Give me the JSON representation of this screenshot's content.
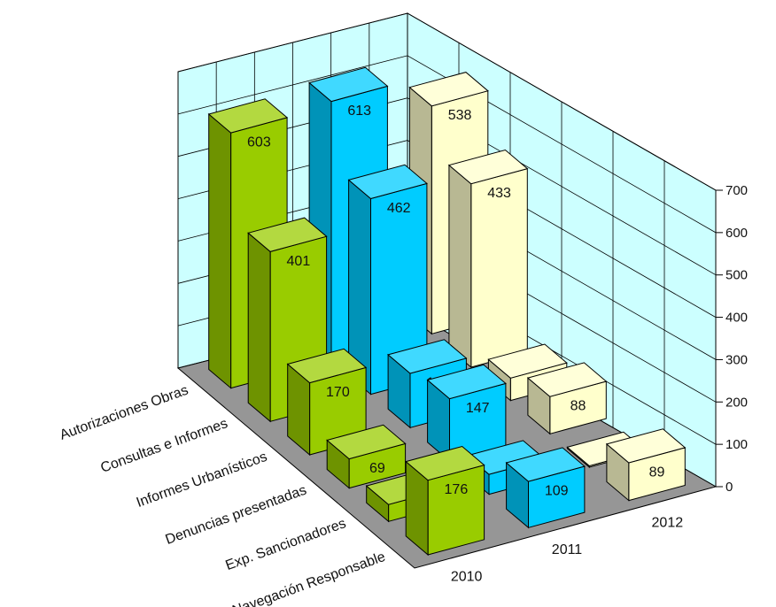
{
  "chart_data": {
    "type": "bar",
    "categories": [
      "Autorizaciones Obras",
      "Consultas e Informes",
      "Informes Urbanísticos",
      "Denuncias presentadas",
      "Exp. Sancionadores",
      "Navegación Responsable"
    ],
    "series": [
      {
        "name": "2010",
        "values": [
          603,
          401,
          170,
          69,
          40,
          176
        ]
      },
      {
        "name": "2011",
        "values": [
          613,
          462,
          128,
          147,
          47,
          109
        ]
      },
      {
        "name": "2012",
        "values": [
          538,
          433,
          53,
          88,
          3,
          89
        ]
      }
    ],
    "ylim": [
      0,
      700
    ],
    "yticks": [
      0,
      100,
      200,
      300,
      400,
      500,
      600,
      700
    ],
    "grid": true,
    "colors": {
      "2010": "#99cc00",
      "2011": "#00ccff",
      "2012": "#ffffcc",
      "walls": "#ccffff",
      "floor": "#969696"
    }
  }
}
